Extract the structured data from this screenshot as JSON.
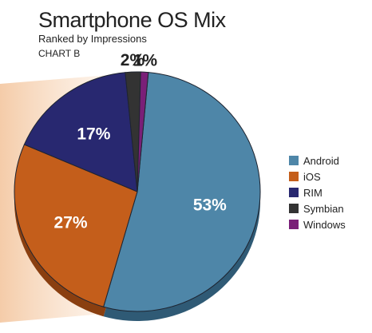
{
  "chart_data": {
    "type": "pie",
    "title": "Smartphone OS Mix",
    "subtitle": "Ranked by Impressions",
    "tag": "CHART B",
    "legend_position": "right",
    "slices": [
      {
        "name": "Android",
        "value": 53,
        "label": "53%",
        "color": "#4e86a8",
        "shade": "#2f5a75",
        "label_color": "#ffffff"
      },
      {
        "name": "iOS",
        "value": 27,
        "label": "27%",
        "color": "#c45e1b",
        "shade": "#8a3f10",
        "label_color": "#ffffff"
      },
      {
        "name": "RIM",
        "value": 17,
        "label": "17%",
        "color": "#282870",
        "shade": "#161648",
        "label_color": "#ffffff"
      },
      {
        "name": "Symbian",
        "value": 2,
        "label": "2%",
        "color": "#333333",
        "shade": "#1b1b1b",
        "label_color": "#222222"
      },
      {
        "name": "Windows",
        "value": 1,
        "label": "1%",
        "color": "#7a1f78",
        "shade": "#4d124b",
        "label_color": "#222222"
      }
    ]
  }
}
